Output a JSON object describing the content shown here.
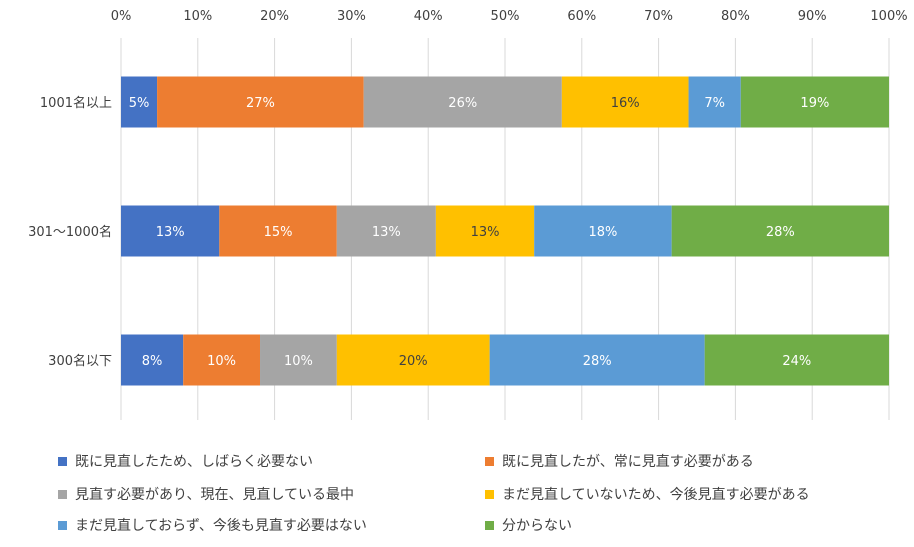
{
  "chart_data": {
    "type": "bar",
    "orientation": "horizontal",
    "stacked": true,
    "title": "",
    "xlabel": "",
    "ylabel": "",
    "xlim": [
      0,
      100
    ],
    "x_ticks": [
      "0%",
      "10%",
      "20%",
      "30%",
      "40%",
      "50%",
      "60%",
      "70%",
      "80%",
      "90%",
      "100%"
    ],
    "grid": "vertical",
    "legend_placement": "bottom",
    "categories": [
      "1001名以上",
      "301～1000名",
      "300名以下"
    ],
    "series": [
      {
        "name": "既に見直したため、しばらく必要ない",
        "color": "#4472C4",
        "values": [
          4.7,
          12.8,
          8.1
        ],
        "labels": [
          "5%",
          "13%",
          "8%"
        ]
      },
      {
        "name": "既に見直したが、常に見直す必要がある",
        "color": "#ED7D31",
        "values": [
          26.9,
          15.3,
          10.0
        ],
        "labels": [
          "27%",
          "15%",
          "10%"
        ]
      },
      {
        "name": "見直す必要があり、現在、見直している最中",
        "color": "#A5A5A5",
        "values": [
          25.8,
          12.9,
          10.0
        ],
        "labels": [
          "26%",
          "13%",
          "10%"
        ]
      },
      {
        "name": "まだ見直していないため、今後見直す必要がある",
        "color": "#FFC000",
        "values": [
          16.5,
          12.8,
          19.9
        ],
        "labels": [
          "16%",
          "13%",
          "20%"
        ]
      },
      {
        "name": "まだ見直しておらず、今後も見直す必要はない",
        "color": "#5B9BD5",
        "values": [
          6.8,
          17.9,
          28.0
        ],
        "labels": [
          "7%",
          "18%",
          "28%"
        ]
      },
      {
        "name": "分からない",
        "color": "#70AD47",
        "values": [
          19.3,
          28.3,
          24.0
        ],
        "labels": [
          "19%",
          "28%",
          "24%"
        ]
      }
    ]
  }
}
